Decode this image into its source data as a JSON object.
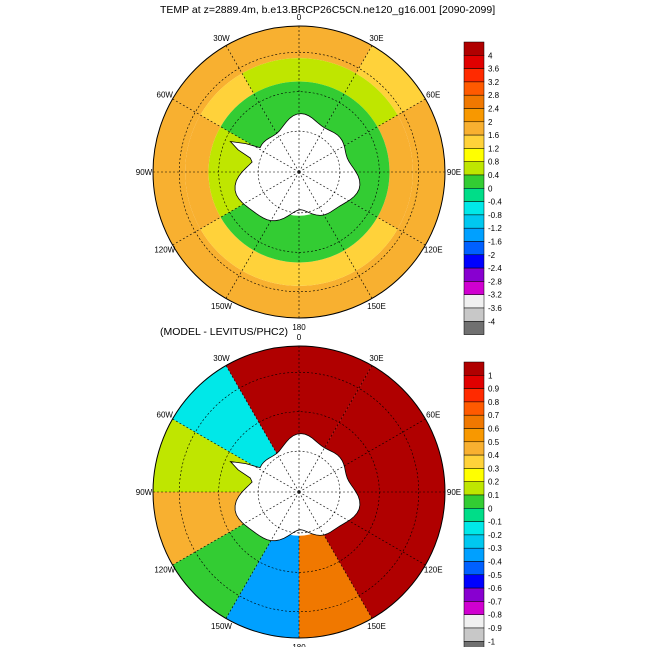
{
  "titles": {
    "top": "TEMP at z=2889.4m, b.e13.BRCP26C5CN.ne120_g16.001 [2090-2099]",
    "bottom": "(MODEL - LEVITUS/PHC2)"
  },
  "longitude_labels": [
    "0",
    "30E",
    "60E",
    "90E",
    "120E",
    "150E",
    "180",
    "150W",
    "120W",
    "90W",
    "60W",
    "30W"
  ],
  "colorbars": {
    "top": {
      "levels": [
        "4",
        "3.6",
        "3.2",
        "2.8",
        "2.4",
        "2",
        "1.6",
        "1.2",
        "0.8",
        "0.4",
        "0",
        "-0.4",
        "-0.8",
        "-1.2",
        "-1.6",
        "-2",
        "-2.4",
        "-2.8",
        "-3.2",
        "-3.6",
        "-4"
      ],
      "colors": [
        "#b00000",
        "#e00000",
        "#ff2a00",
        "#ff5a00",
        "#f07800",
        "#f89800",
        "#f8b030",
        "#ffd23a",
        "#ffff00",
        "#bfe600",
        "#33cc33",
        "#00dd88",
        "#00e8e8",
        "#00c8f0",
        "#00a0ff",
        "#0060ff",
        "#0000ff",
        "#8800d0",
        "#d000d0",
        "#f0f0f0",
        "#c8c8c8",
        "#707070"
      ]
    },
    "bottom": {
      "levels": [
        "1",
        "0.9",
        "0.8",
        "0.7",
        "0.6",
        "0.5",
        "0.4",
        "0.3",
        "0.2",
        "0.1",
        "0",
        "-0.1",
        "-0.2",
        "-0.3",
        "-0.4",
        "-0.5",
        "-0.6",
        "-0.7",
        "-0.8",
        "-0.9",
        "-1"
      ],
      "colors": [
        "#b00000",
        "#e00000",
        "#ff2a00",
        "#ff5a00",
        "#f07800",
        "#f89800",
        "#f8b030",
        "#ffd23a",
        "#ffff00",
        "#bfe600",
        "#33cc33",
        "#00dd88",
        "#00e8e8",
        "#00c8f0",
        "#00a0ff",
        "#0060ff",
        "#0000ff",
        "#8800d0",
        "#d000d0",
        "#f0f0f0",
        "#c8c8c8",
        "#707070"
      ]
    }
  },
  "chart_data": [
    {
      "type": "heatmap",
      "projection": "polar-stereographic",
      "region": "Southern Ocean",
      "title": "TEMP at z=2889.4m, b.e13.BRCP26C5CN.ne120_g16.001 [2090-2099]",
      "colorbar_range": [
        -4,
        4
      ],
      "colorbar_interval": 0.4,
      "sectors": [
        {
          "lon_range": "30W-30E",
          "outer": 1.6,
          "middle": 0.8,
          "inner": 0.4
        },
        {
          "lon_range": "30E-60E",
          "outer": 1.2,
          "middle": 0.8,
          "inner": 0.4
        },
        {
          "lon_range": "60E-120E",
          "outer": 2.0,
          "middle": 1.6,
          "inner": 0.4
        },
        {
          "lon_range": "120E-180",
          "outer": 2.0,
          "middle": 1.2,
          "inner": 0.4
        },
        {
          "lon_range": "180-120W",
          "outer": 1.6,
          "middle": 1.2,
          "inner": 0.4
        },
        {
          "lon_range": "120W-60W",
          "outer": 2.0,
          "middle": 1.6,
          "inner": 0.8
        },
        {
          "lon_range": "60W-30W",
          "outer": 1.6,
          "middle": 1.2,
          "inner": 0.4
        }
      ],
      "landmask": "Antarctica"
    },
    {
      "type": "heatmap",
      "projection": "polar-stereographic",
      "region": "Southern Ocean",
      "title": "(MODEL - LEVITUS/PHC2)",
      "colorbar_range": [
        -1,
        1
      ],
      "colorbar_interval": 0.1,
      "sectors": [
        {
          "lon_range": "30W-30E",
          "value": 1.0
        },
        {
          "lon_range": "30E-90E",
          "value": 1.0
        },
        {
          "lon_range": "90E-150E",
          "value": 1.0
        },
        {
          "lon_range": "150E-180",
          "value": 0.7
        },
        {
          "lon_range": "180-150W",
          "value": -0.3
        },
        {
          "lon_range": "150W-120W",
          "value": 0.1
        },
        {
          "lon_range": "120W-90W",
          "value": 0.4
        },
        {
          "lon_range": "90W-60W",
          "value": 0.2
        },
        {
          "lon_range": "60W-30W",
          "value": -0.2
        }
      ],
      "landmask": "Antarctica"
    }
  ]
}
